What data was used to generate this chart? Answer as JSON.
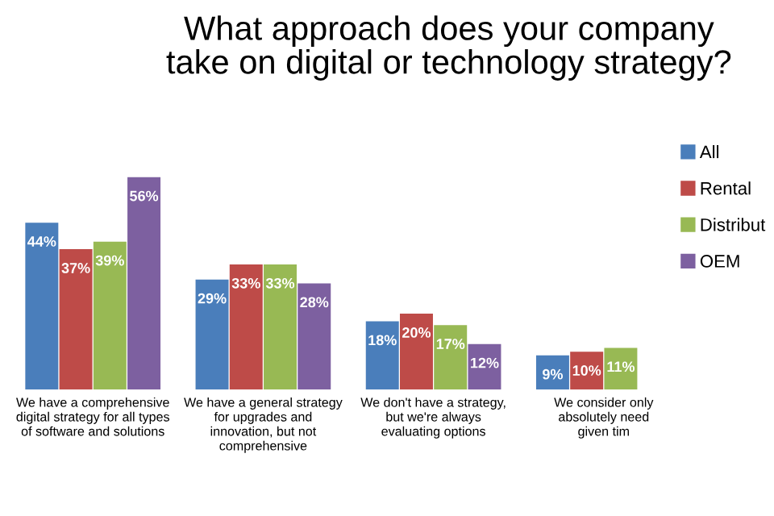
{
  "chart_data": {
    "type": "bar",
    "title": "What approach does your company\ntake on digital or technology strategy?",
    "categories": [
      "We have a comprehensive\ndigital strategy for all types\nof software and solutions",
      "We have a general strategy\nfor upgrades and\ninnovation, but not\ncomprehensive",
      "We don't have a strategy,\nbut we're always\nevaluating options",
      "We consider only\nabsolutely need\ngiven tim"
    ],
    "series": [
      {
        "name": "All",
        "color": "#4a7ebb",
        "values": [
          44,
          29,
          18,
          9
        ],
        "value_labels": [
          "44%",
          "29%",
          "18%",
          "9%"
        ]
      },
      {
        "name": "Rental",
        "color": "#be4b48",
        "values": [
          37,
          33,
          20,
          10
        ],
        "value_labels": [
          "37%",
          "33%",
          "20%",
          "10%"
        ]
      },
      {
        "name": "Distribut",
        "color": "#98b954",
        "values": [
          39,
          33,
          17,
          11
        ],
        "value_labels": [
          "39%",
          "33%",
          "17%",
          "11%"
        ]
      },
      {
        "name": "OEM",
        "color": "#7d60a0",
        "values": [
          56,
          28,
          12,
          null
        ],
        "value_labels": [
          "56%",
          "28%",
          "12%",
          null
        ]
      }
    ],
    "legend": "top right",
    "grid": false
  }
}
